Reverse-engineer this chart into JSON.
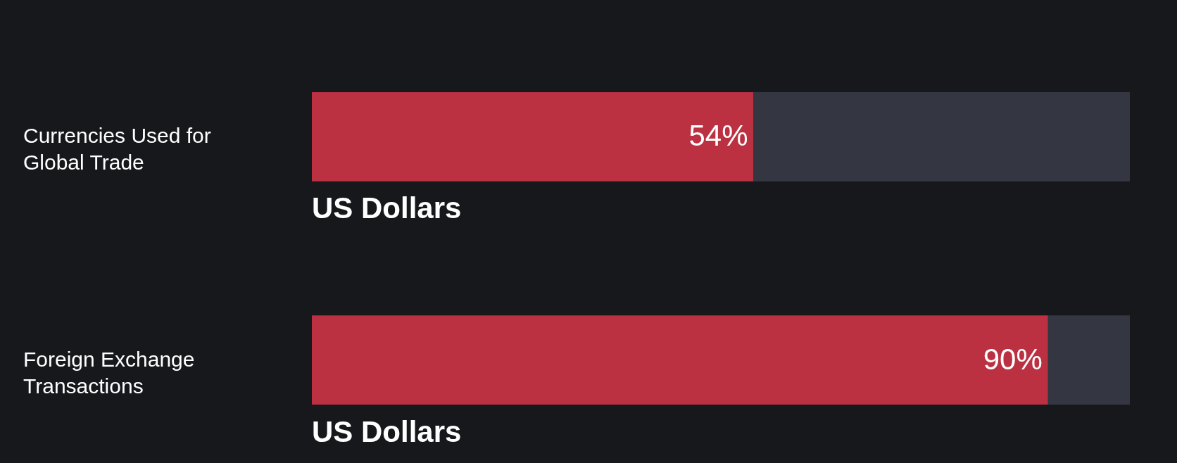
{
  "chart_data": {
    "type": "bar",
    "orientation": "horizontal",
    "stacked": true,
    "categories": [
      "Currencies Used for Global Trade",
      "Foreign Exchange Transactions"
    ],
    "series": [
      {
        "name": "US Dollars",
        "color": "#bb3142",
        "values": [
          54,
          90
        ],
        "value_labels": [
          "54%",
          "90%"
        ]
      },
      {
        "color": "#343741",
        "values": [
          46,
          10
        ]
      }
    ],
    "xlim": [
      0,
      100
    ],
    "tick_labels": "y"
  }
}
